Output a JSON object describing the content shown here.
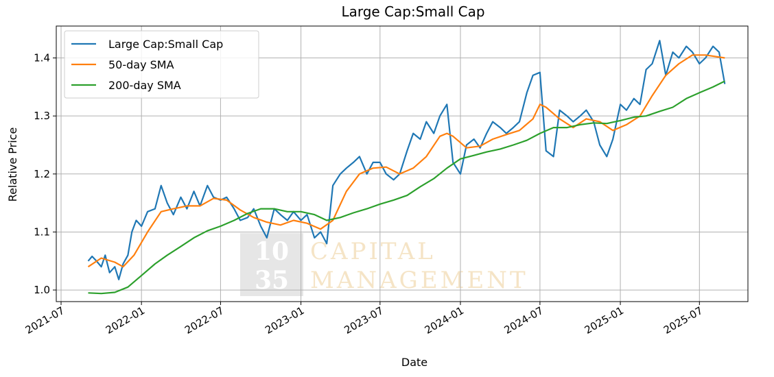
{
  "chart_data": {
    "type": "line",
    "title": "Large Cap:Small Cap",
    "xlabel": "Date",
    "ylabel": "Relative Price",
    "xlim": [
      "2021-06-20",
      "2025-10-20"
    ],
    "ylim": [
      0.98,
      1.455
    ],
    "xticks": [
      "2021-07",
      "2022-01",
      "2022-07",
      "2023-01",
      "2023-07",
      "2024-01",
      "2024-07",
      "2025-01",
      "2025-07"
    ],
    "yticks": [
      1.0,
      1.1,
      1.2,
      1.3,
      1.4
    ],
    "ytick_labels": [
      "1.0",
      "1.1",
      "1.2",
      "1.3",
      "1.4"
    ],
    "grid": true,
    "legend_position": "top-left",
    "watermark": {
      "numbers": [
        "10",
        "35"
      ],
      "words": [
        "CAPITAL",
        "MANAGEMENT"
      ]
    },
    "series": [
      {
        "name": "Large Cap:Small Cap",
        "color": "#1f77b4",
        "x": [
          "2021-09-01",
          "2021-09-10",
          "2021-09-20",
          "2021-10-01",
          "2021-10-10",
          "2021-10-20",
          "2021-11-01",
          "2021-11-10",
          "2021-11-20",
          "2021-12-01",
          "2021-12-10",
          "2021-12-20",
          "2022-01-01",
          "2022-01-15",
          "2022-02-01",
          "2022-02-15",
          "2022-03-01",
          "2022-03-15",
          "2022-04-01",
          "2022-04-15",
          "2022-05-01",
          "2022-05-15",
          "2022-06-01",
          "2022-06-15",
          "2022-07-01",
          "2022-07-15",
          "2022-08-01",
          "2022-08-15",
          "2022-09-01",
          "2022-09-15",
          "2022-10-01",
          "2022-10-15",
          "2022-11-01",
          "2022-11-15",
          "2022-12-01",
          "2022-12-15",
          "2023-01-01",
          "2023-01-15",
          "2023-02-01",
          "2023-02-15",
          "2023-03-01",
          "2023-03-15",
          "2023-04-01",
          "2023-04-15",
          "2023-05-01",
          "2023-05-15",
          "2023-06-01",
          "2023-06-15",
          "2023-07-01",
          "2023-07-15",
          "2023-08-01",
          "2023-08-15",
          "2023-09-01",
          "2023-09-15",
          "2023-10-01",
          "2023-10-15",
          "2023-11-01",
          "2023-11-15",
          "2023-12-01",
          "2023-12-15",
          "2024-01-01",
          "2024-01-15",
          "2024-02-01",
          "2024-02-15",
          "2024-03-01",
          "2024-03-15",
          "2024-04-01",
          "2024-04-15",
          "2024-05-01",
          "2024-05-15",
          "2024-06-01",
          "2024-06-15",
          "2024-07-01",
          "2024-07-15",
          "2024-08-01",
          "2024-08-15",
          "2024-09-01",
          "2024-09-15",
          "2024-10-01",
          "2024-10-15",
          "2024-11-01",
          "2024-11-15",
          "2024-12-01",
          "2024-12-15",
          "2025-01-01",
          "2025-01-15",
          "2025-02-01",
          "2025-02-15",
          "2025-03-01",
          "2025-03-15",
          "2025-04-01",
          "2025-04-15",
          "2025-05-01",
          "2025-05-15",
          "2025-06-01",
          "2025-06-15",
          "2025-07-01",
          "2025-07-15",
          "2025-08-01",
          "2025-08-15",
          "2025-08-28"
        ],
        "y": [
          1.05,
          1.058,
          1.05,
          1.04,
          1.06,
          1.03,
          1.04,
          1.018,
          1.045,
          1.06,
          1.1,
          1.12,
          1.11,
          1.135,
          1.14,
          1.18,
          1.15,
          1.13,
          1.16,
          1.14,
          1.17,
          1.145,
          1.18,
          1.16,
          1.155,
          1.16,
          1.14,
          1.12,
          1.125,
          1.14,
          1.11,
          1.09,
          1.14,
          1.13,
          1.12,
          1.135,
          1.12,
          1.13,
          1.09,
          1.1,
          1.08,
          1.18,
          1.2,
          1.21,
          1.22,
          1.23,
          1.2,
          1.22,
          1.22,
          1.2,
          1.19,
          1.2,
          1.24,
          1.27,
          1.26,
          1.29,
          1.27,
          1.3,
          1.32,
          1.22,
          1.2,
          1.25,
          1.26,
          1.245,
          1.27,
          1.29,
          1.28,
          1.27,
          1.28,
          1.29,
          1.34,
          1.37,
          1.375,
          1.24,
          1.23,
          1.31,
          1.3,
          1.29,
          1.3,
          1.31,
          1.29,
          1.25,
          1.23,
          1.26,
          1.32,
          1.31,
          1.33,
          1.32,
          1.38,
          1.39,
          1.43,
          1.37,
          1.41,
          1.4,
          1.42,
          1.41,
          1.39,
          1.4,
          1.42,
          1.41,
          1.355
        ]
      },
      {
        "name": "50-day SMA",
        "color": "#ff7f0e",
        "x": [
          "2021-09-01",
          "2021-10-01",
          "2021-11-01",
          "2021-11-20",
          "2021-12-15",
          "2022-01-15",
          "2022-02-15",
          "2022-03-15",
          "2022-04-15",
          "2022-05-15",
          "2022-06-15",
          "2022-07-15",
          "2022-08-15",
          "2022-09-15",
          "2022-10-15",
          "2022-11-15",
          "2022-12-15",
          "2023-01-15",
          "2023-02-15",
          "2023-03-15",
          "2023-04-15",
          "2023-05-15",
          "2023-06-15",
          "2023-07-15",
          "2023-08-15",
          "2023-09-15",
          "2023-10-15",
          "2023-11-15",
          "2023-12-01",
          "2023-12-15",
          "2024-01-15",
          "2024-02-15",
          "2024-03-15",
          "2024-04-15",
          "2024-05-15",
          "2024-06-15",
          "2024-07-01",
          "2024-07-15",
          "2024-08-15",
          "2024-09-15",
          "2024-10-15",
          "2024-11-15",
          "2024-12-15",
          "2025-01-15",
          "2025-02-15",
          "2025-03-15",
          "2025-04-15",
          "2025-05-15",
          "2025-06-15",
          "2025-07-15",
          "2025-08-28"
        ],
        "y": [
          1.04,
          1.055,
          1.048,
          1.04,
          1.06,
          1.1,
          1.135,
          1.14,
          1.145,
          1.145,
          1.158,
          1.155,
          1.138,
          1.125,
          1.117,
          1.112,
          1.12,
          1.115,
          1.105,
          1.12,
          1.17,
          1.2,
          1.21,
          1.212,
          1.2,
          1.21,
          1.23,
          1.265,
          1.27,
          1.265,
          1.245,
          1.248,
          1.26,
          1.268,
          1.275,
          1.295,
          1.32,
          1.315,
          1.295,
          1.28,
          1.295,
          1.29,
          1.275,
          1.285,
          1.3,
          1.335,
          1.37,
          1.39,
          1.405,
          1.405,
          1.4
        ]
      },
      {
        "name": "200-day SMA",
        "color": "#2ca02c",
        "x": [
          "2021-09-01",
          "2021-10-01",
          "2021-11-01",
          "2021-12-01",
          "2022-01-01",
          "2022-02-01",
          "2022-03-01",
          "2022-04-01",
          "2022-05-01",
          "2022-06-01",
          "2022-07-01",
          "2022-08-01",
          "2022-09-01",
          "2022-10-01",
          "2022-11-01",
          "2022-12-01",
          "2023-01-01",
          "2023-02-01",
          "2023-03-01",
          "2023-04-01",
          "2023-05-01",
          "2023-06-01",
          "2023-07-01",
          "2023-08-01",
          "2023-09-01",
          "2023-10-01",
          "2023-11-01",
          "2023-12-01",
          "2024-01-01",
          "2024-02-01",
          "2024-03-01",
          "2024-04-01",
          "2024-05-01",
          "2024-06-01",
          "2024-07-01",
          "2024-08-01",
          "2024-09-01",
          "2024-10-01",
          "2024-11-01",
          "2024-12-01",
          "2025-01-01",
          "2025-02-01",
          "2025-03-01",
          "2025-04-01",
          "2025-05-01",
          "2025-06-01",
          "2025-07-01",
          "2025-08-01",
          "2025-08-28"
        ],
        "y": [
          0.995,
          0.994,
          0.996,
          1.005,
          1.025,
          1.045,
          1.06,
          1.075,
          1.09,
          1.102,
          1.11,
          1.12,
          1.132,
          1.14,
          1.14,
          1.135,
          1.135,
          1.13,
          1.12,
          1.125,
          1.133,
          1.14,
          1.148,
          1.155,
          1.163,
          1.178,
          1.192,
          1.21,
          1.226,
          1.232,
          1.238,
          1.243,
          1.25,
          1.258,
          1.27,
          1.28,
          1.28,
          1.285,
          1.288,
          1.287,
          1.292,
          1.298,
          1.3,
          1.308,
          1.315,
          1.33,
          1.34,
          1.35,
          1.36
        ]
      }
    ]
  }
}
